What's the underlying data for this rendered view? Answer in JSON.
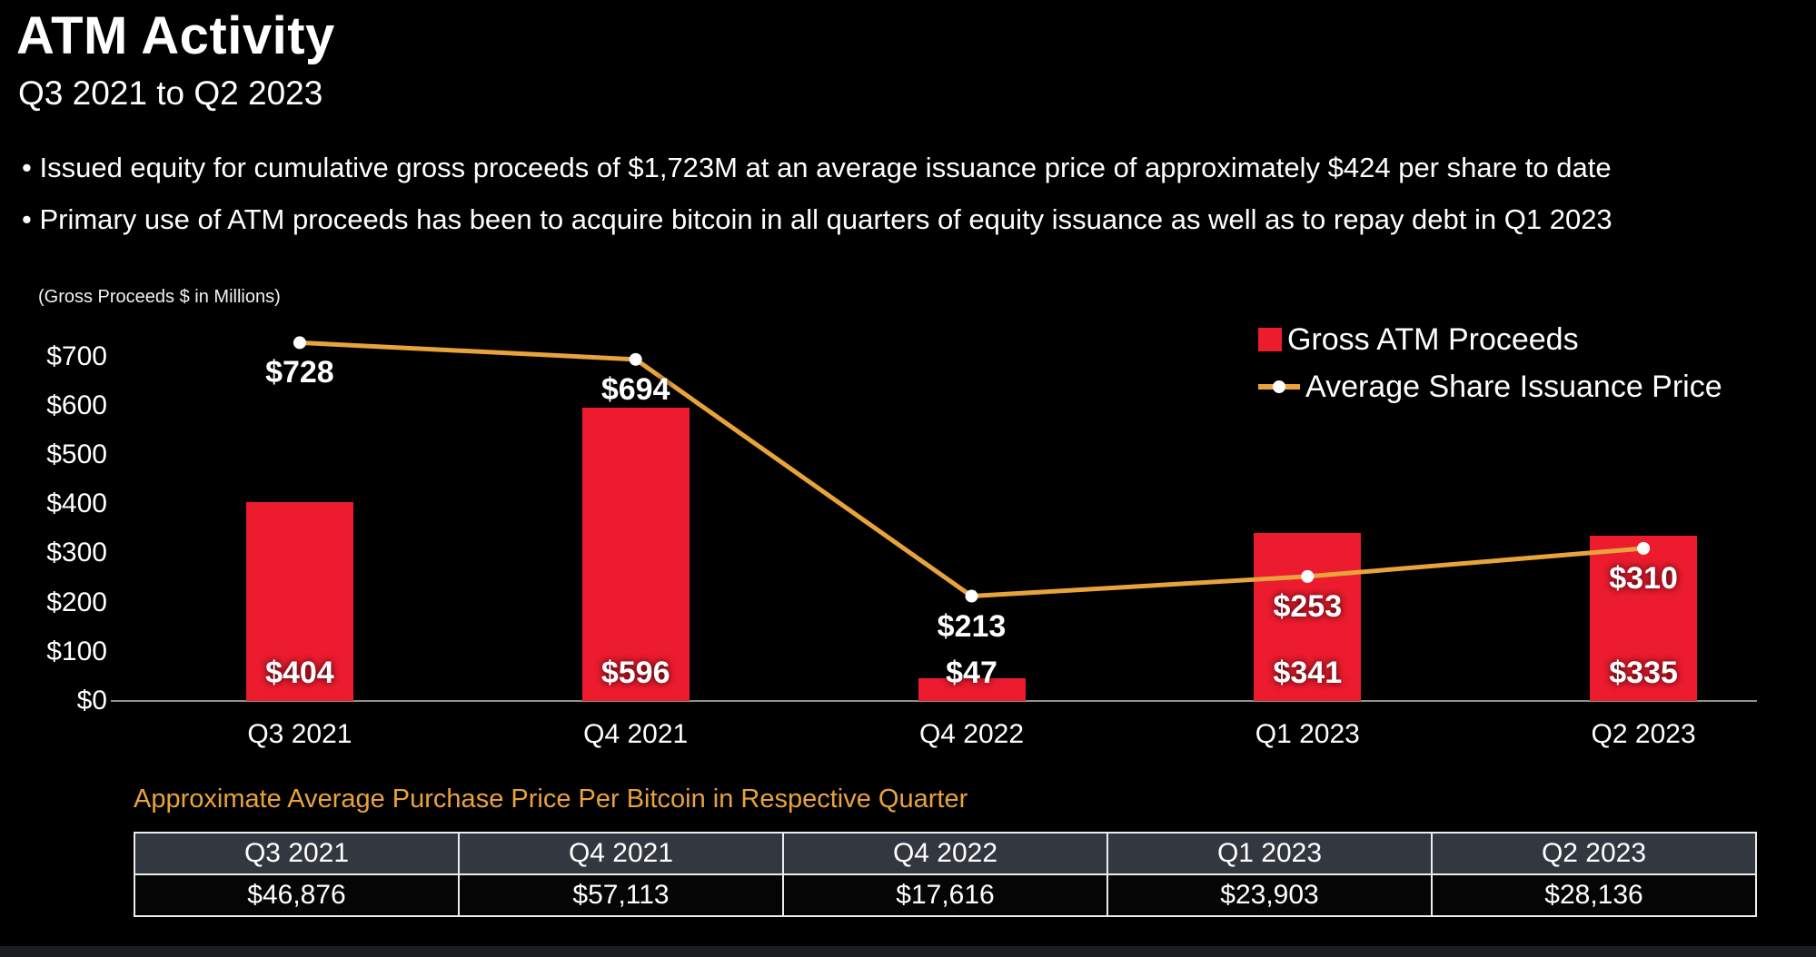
{
  "slide": {
    "title": "ATM Activity",
    "subtitle": "Q3 2021 to Q2 2023",
    "bullets": [
      "Issued equity for cumulative gross proceeds of $1,723M at an average issuance price of approximately $424 per share to date",
      "Primary use of ATM proceeds has been to acquire bitcoin in all quarters of equity issuance as well as to repay debt in Q1 2023"
    ]
  },
  "chart_data": {
    "type": "bar",
    "axis_note": "(Gross Proceeds $ in Millions)",
    "categories": [
      "Q3 2021",
      "Q4 2021",
      "Q4 2022",
      "Q1 2023",
      "Q2 2023"
    ],
    "series": [
      {
        "name": "Gross ATM Proceeds",
        "type": "bar",
        "color": "#EC1B2E",
        "values": [
          404,
          596,
          47,
          341,
          335
        ],
        "labels": [
          "$404",
          "$596",
          "$47",
          "$341",
          "$335"
        ]
      },
      {
        "name": "Average Share Issuance Price",
        "type": "line",
        "color": "#E8A33D",
        "values": [
          728,
          694,
          213,
          253,
          310
        ],
        "labels": [
          "$728",
          "$694",
          "$213",
          "$253",
          "$310"
        ]
      }
    ],
    "y_ticks": [
      0,
      100,
      200,
      300,
      400,
      500,
      600,
      700
    ],
    "y_tick_labels": [
      "$0",
      "$100",
      "$200",
      "$300",
      "$400",
      "$500",
      "$600",
      "$700"
    ],
    "ylim": [
      0,
      760
    ],
    "grid": false,
    "legend_position": "top-right"
  },
  "table": {
    "caption": "Approximate Average Purchase Price Per Bitcoin in Respective Quarter",
    "headers": [
      "Q3 2021",
      "Q4 2021",
      "Q4 2022",
      "Q1 2023",
      "Q2 2023"
    ],
    "values": [
      "$46,876",
      "$57,113",
      "$17,616",
      "$23,903",
      "$28,136"
    ]
  },
  "colors": {
    "background": "#000000",
    "bar": "#EC1B2E",
    "line": "#E8A33D",
    "marker": "#FFFFFF",
    "caption_orange": "#E8A33D",
    "table_header_bg": "#333840",
    "table_row_bg": "#050505",
    "axis_line": "#8F8F8F",
    "text": "#FFFFFF"
  }
}
